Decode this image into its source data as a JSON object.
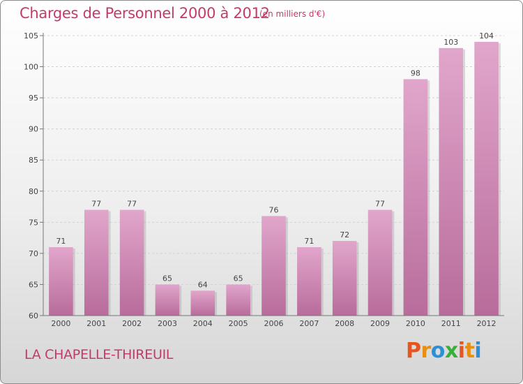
{
  "header": {
    "title": "Charges de Personnel 2000 à 2012",
    "subtitle": "(en milliers d'€)"
  },
  "footer": {
    "commune": "LA CHAPELLE-THIREUIL",
    "logo_text": "Proxiti"
  },
  "colors": {
    "accent": "#c43a6c",
    "bar_top": "#e1a6cb",
    "bar_bottom": "#b86c9b",
    "logo_letters": [
      "#e8541e",
      "#e88f12",
      "#2d8fd6",
      "#3aae3a",
      "#e8541e",
      "#e88f12",
      "#2d8fd6"
    ]
  },
  "chart_data": {
    "type": "bar",
    "title": "Charges de Personnel 2000 à 2012",
    "subtitle": "(en milliers d'€)",
    "categories": [
      "2000",
      "2001",
      "2002",
      "2003",
      "2004",
      "2005",
      "2006",
      "2007",
      "2008",
      "2009",
      "2010",
      "2011",
      "2012"
    ],
    "values": [
      71,
      77,
      77,
      65,
      64,
      65,
      76,
      71,
      72,
      77,
      98,
      103,
      104
    ],
    "ylim": [
      60,
      105
    ],
    "yticks": [
      60,
      65,
      70,
      75,
      80,
      85,
      90,
      95,
      100,
      105
    ],
    "grid": true,
    "legend": "none"
  }
}
